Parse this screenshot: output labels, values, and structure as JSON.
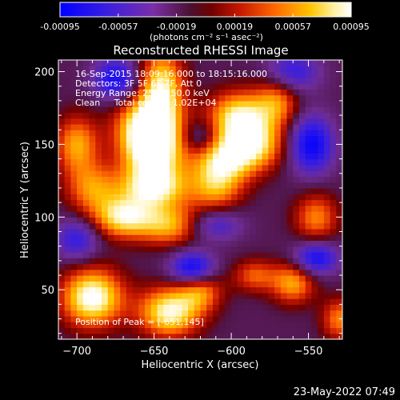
{
  "chart_data": {
    "type": "heatmap",
    "title": "Reconstructed RHESSI Image",
    "xlabel": "Heliocentric X (arcsec)",
    "ylabel": "Heliocentric Y (arcsec)",
    "xlim": [
      -712,
      -528
    ],
    "ylim": [
      16,
      208
    ],
    "x_ticks": [
      -700,
      -650,
      -600,
      -550
    ],
    "y_ticks": [
      50,
      100,
      150,
      200
    ],
    "colorbar": {
      "min": -0.00095,
      "max": 0.00095,
      "ticks": [
        "-0.00095",
        "-0.00057",
        "-0.00019",
        "0.00019",
        "0.00057",
        "0.00095"
      ],
      "units": "(photons cm⁻² s⁻¹ asec⁻²)",
      "colormap": [
        "#0000ff",
        "#5a1fb0",
        "#6a2a8a",
        "#b01a10",
        "#ff4400",
        "#ff9a00",
        "#ffee55",
        "#ffffff"
      ]
    },
    "annotations": {
      "line1": "16-Sep-2015 18:09:16.000 to 18:15:16.000",
      "line2": "Detectors: 3F 5F 6F 7F, Att 0",
      "line3": "Energy Range: 25.0 - 50.0 keV",
      "line4": "Clean     Total counts: 1.02E+04",
      "peak": "Position of Peak = [-651,145]"
    },
    "footer_date": "23-May-2022 07:49"
  }
}
